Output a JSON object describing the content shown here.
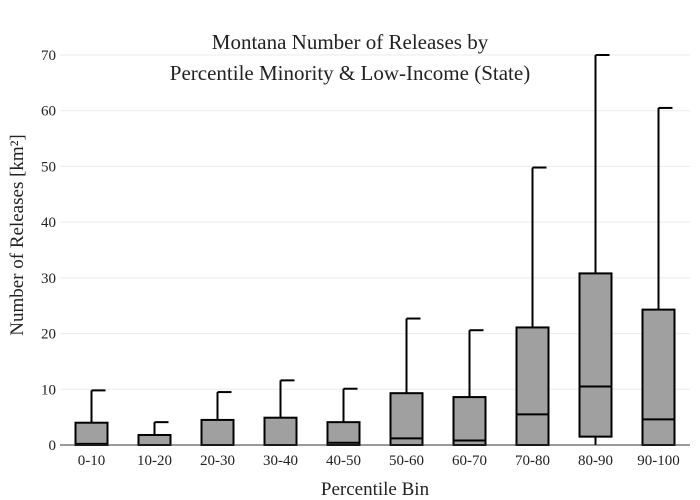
{
  "chart_data": {
    "type": "box",
    "title": [
      "Montana Number of Releases by",
      "Percentile Minority & Low-Income (State)"
    ],
    "xlabel": "Percentile Bin",
    "ylabel": "Number of Releases  [km²]",
    "ylim": [
      0,
      70
    ],
    "yticks": [
      0,
      10,
      20,
      30,
      40,
      50,
      60,
      70
    ],
    "grid": true,
    "legend": false,
    "box_color": "#a0a0a0",
    "categories": [
      "0-10",
      "10-20",
      "20-30",
      "30-40",
      "40-50",
      "50-60",
      "60-70",
      "70-80",
      "80-90",
      "90-100"
    ],
    "series": [
      {
        "min": [
          0,
          0,
          0,
          0,
          0,
          0,
          0,
          0,
          0,
          0
        ],
        "q1": [
          0,
          0,
          0,
          0,
          0,
          0,
          0,
          0,
          1.5,
          0
        ],
        "median": [
          0.2,
          0,
          0,
          0,
          0.4,
          1.2,
          0.8,
          5.5,
          10.5,
          4.6
        ],
        "q3": [
          4,
          1.8,
          4.5,
          4.9,
          4.1,
          9.3,
          8.6,
          21.1,
          30.8,
          24.3
        ],
        "max": [
          9.8,
          4.1,
          9.5,
          11.6,
          10.1,
          22.7,
          20.6,
          49.8,
          70,
          60.5
        ]
      }
    ]
  }
}
